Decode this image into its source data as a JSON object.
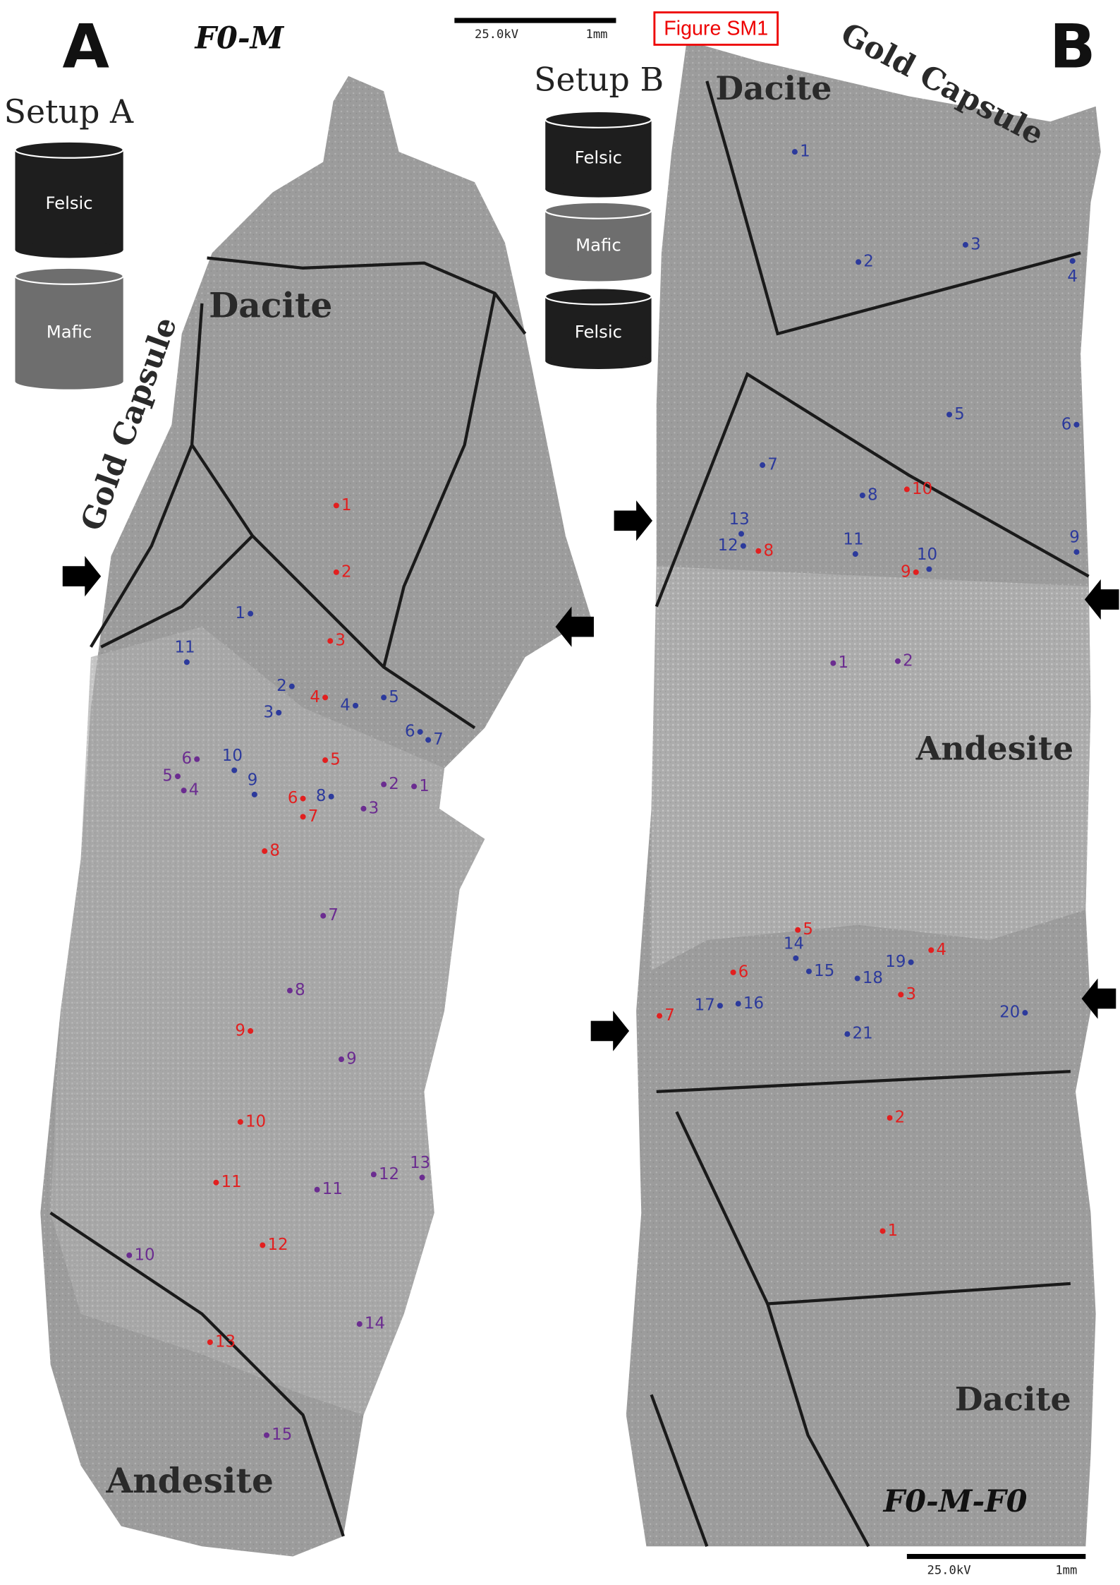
{
  "figure_label": "Figure SM1",
  "point_colors": {
    "red": "#e21f1f",
    "blue": "#2c3a9c",
    "purple": "#6b2c90"
  },
  "panels": [
    {
      "letter": "A",
      "sample": "F0-M",
      "setup": {
        "title": "Setup A",
        "layers": [
          "Felsic",
          "Mafic"
        ]
      },
      "labels": [
        "Dacite",
        "Gold Capsule",
        "Andesite"
      ],
      "scale_bar": {
        "voltage": "25.0kV",
        "length": "1mm"
      },
      "points": {
        "red": [
          "1",
          "2",
          "3",
          "4",
          "5",
          "6",
          "7",
          "8",
          "9",
          "10",
          "11",
          "12",
          "13"
        ],
        "blue": [
          "1",
          "2",
          "3",
          "4",
          "5",
          "6",
          "7",
          "8",
          "9",
          "10",
          "11"
        ],
        "purple": [
          "1",
          "2",
          "3",
          "4",
          "5",
          "6",
          "7",
          "8",
          "9",
          "10",
          "11",
          "12",
          "13",
          "14",
          "15"
        ]
      }
    },
    {
      "letter": "B",
      "sample": "F0-M-F0",
      "setup": {
        "title": "Setup B",
        "layers": [
          "Felsic",
          "Mafic",
          "Felsic"
        ]
      },
      "labels": [
        "Dacite",
        "Gold Capsule",
        "Andesite",
        "Dacite"
      ],
      "scale_bar": {
        "voltage": "25.0kV",
        "length": "1mm"
      },
      "points": {
        "red": [
          "1",
          "2",
          "3",
          "4",
          "5",
          "6",
          "7",
          "8",
          "9",
          "10"
        ],
        "blue": [
          "1",
          "2",
          "3",
          "4",
          "5",
          "6",
          "7",
          "8",
          "9",
          "10",
          "11",
          "12",
          "13",
          "14",
          "15",
          "16",
          "17",
          "18",
          "19",
          "20",
          "21"
        ],
        "purple": [
          "1",
          "2"
        ]
      }
    }
  ]
}
